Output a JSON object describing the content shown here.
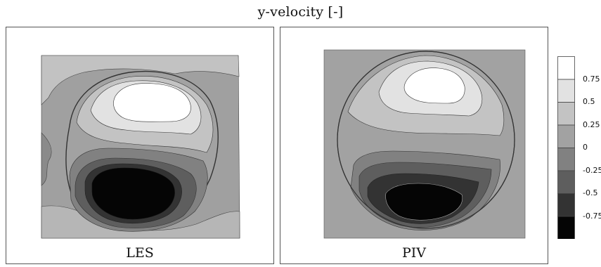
{
  "title": "y-velocity [-]",
  "panels": [
    {
      "id": "les",
      "label": "LES"
    },
    {
      "id": "piv",
      "label": "PIV"
    }
  ],
  "chart_data": {
    "type": "heatmap",
    "title": "y-velocity [-]",
    "colormap": "grayscale",
    "levels": [
      {
        "label": "0.75",
        "color": "#ffffff"
      },
      {
        "label": "0.5",
        "color": "#e2e2e2"
      },
      {
        "label": "0.25",
        "color": "#c3c3c3"
      },
      {
        "label": "0",
        "color": "#a2a2a2"
      },
      {
        "label": "-0.25",
        "color": "#818181"
      },
      {
        "label": "-0.5",
        "color": "#5e5e5e"
      },
      {
        "label": "-0.75",
        "color": "#333333"
      },
      {
        "label": "",
        "color": "#050505"
      }
    ],
    "legend_ticks": [
      "0.75",
      "0.5",
      "0.25",
      "0",
      "-0.25",
      "-0.5",
      "-0.75"
    ],
    "legend_position": "right",
    "panels": [
      "LES",
      "PIV"
    ]
  }
}
